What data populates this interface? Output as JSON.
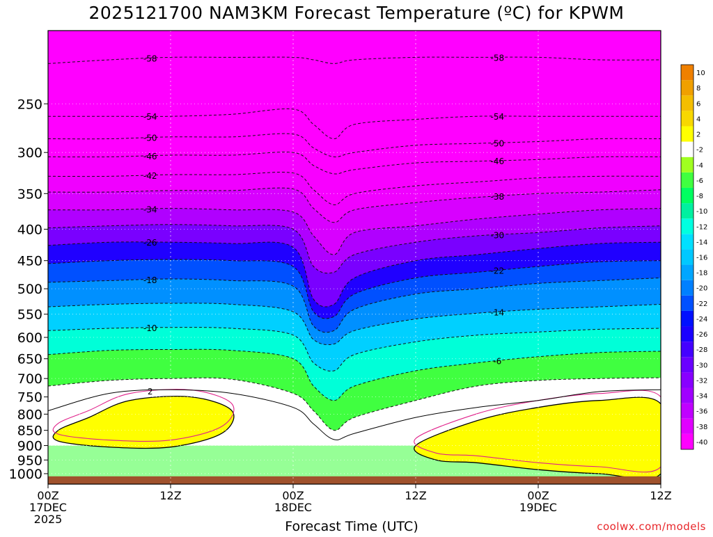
{
  "title": "2025121700 NAM3KM Forecast Temperature (ºC) for KPWM",
  "xlabel": "Forecast Time (UTC)",
  "credit": "coolwx.com/models",
  "chart_data": {
    "type": "heatmap",
    "title": "2025121700 NAM3KM Forecast Temperature (ºC) for KPWM",
    "xlabel": "Forecast Time (UTC)",
    "ylabel": "",
    "x_range_hours": [
      0,
      60
    ],
    "y_range_mb": [
      190,
      1040
    ],
    "y_scale": "log",
    "x_ticks": [
      {
        "hour": 0,
        "lines": [
          "00Z",
          "17DEC",
          "2025"
        ]
      },
      {
        "hour": 12,
        "lines": [
          "12Z"
        ]
      },
      {
        "hour": 24,
        "lines": [
          "00Z",
          "18DEC"
        ]
      },
      {
        "hour": 36,
        "lines": [
          "12Z"
        ]
      },
      {
        "hour": 48,
        "lines": [
          "00Z",
          "19DEC"
        ]
      },
      {
        "hour": 60,
        "lines": [
          "12Z"
        ]
      }
    ],
    "y_ticks": [
      250,
      300,
      350,
      400,
      450,
      500,
      550,
      600,
      650,
      700,
      750,
      800,
      850,
      900,
      950,
      1000
    ],
    "grid": true,
    "colorbar": {
      "position": "right",
      "colors": [
        "#ff00ff",
        "#e000ff",
        "#c000ff",
        "#a000ff",
        "#8800ff",
        "#6a00ff",
        "#4400ff",
        "#1a00ff",
        "#0010ff",
        "#0050ff",
        "#0080ff",
        "#00a6ff",
        "#00c8ff",
        "#00e0ff",
        "#00ffe0",
        "#00f0a0",
        "#00ff60",
        "#40ff40",
        "#a0ff20",
        "#ffffff",
        "#ffff00",
        "#f8d800",
        "#f4be00",
        "#f0a000",
        "#ef8000"
      ],
      "labels": [
        "-40",
        "-38",
        "-36",
        "-34",
        "-32",
        "-30",
        "-28",
        "-26",
        "-24",
        "-22",
        "-20",
        "-18",
        "-16",
        "-14",
        "-12",
        "-10",
        "-8",
        "-6",
        "-4",
        "-2",
        "2",
        "4",
        "6",
        "8",
        "10"
      ]
    },
    "forecast_hours": [
      0,
      6,
      12,
      18,
      24,
      26,
      28,
      30,
      36,
      42,
      48,
      54,
      60
    ],
    "isotherm_pressure_mb": {
      "-58": [
        215,
        212,
        210,
        210,
        210,
        212,
        215,
        212,
        210,
        210,
        210,
        212,
        212
      ],
      "-54": [
        262,
        262,
        262,
        260,
        255,
        270,
        285,
        270,
        265,
        262,
        262,
        262,
        262
      ],
      "-50": [
        285,
        285,
        283,
        283,
        280,
        295,
        305,
        300,
        292,
        290,
        288,
        285,
        285
      ],
      "-46": [
        305,
        305,
        303,
        303,
        300,
        315,
        325,
        320,
        312,
        310,
        308,
        305,
        305
      ],
      "-42": [
        328,
        328,
        326,
        326,
        324,
        345,
        365,
        350,
        340,
        335,
        330,
        328,
        328
      ],
      "-38": [
        348,
        348,
        346,
        346,
        344,
        370,
        390,
        372,
        362,
        355,
        350,
        348,
        345
      ],
      "-34": [
        372,
        372,
        370,
        372,
        375,
        410,
        440,
        405,
        395,
        385,
        378,
        372,
        370
      ],
      "-30": [
        398,
        395,
        393,
        395,
        400,
        460,
        470,
        440,
        420,
        410,
        405,
        398,
        395
      ],
      "-26": [
        425,
        420,
        420,
        422,
        428,
        520,
        530,
        480,
        450,
        440,
        430,
        422,
        420
      ],
      "-22": [
        455,
        450,
        448,
        450,
        460,
        545,
        555,
        510,
        480,
        470,
        460,
        452,
        450
      ],
      "-18": [
        488,
        485,
        482,
        485,
        495,
        575,
        585,
        540,
        510,
        500,
        490,
        485,
        480
      ],
      "-14": [
        535,
        530,
        528,
        530,
        545,
        605,
        615,
        585,
        560,
        548,
        540,
        535,
        530
      ],
      "-10": [
        585,
        580,
        578,
        580,
        595,
        660,
        680,
        640,
        610,
        595,
        588,
        582,
        580
      ],
      "-6": [
        640,
        630,
        628,
        630,
        650,
        720,
        760,
        720,
        680,
        660,
        645,
        635,
        632
      ],
      "-2": [
        720,
        705,
        700,
        702,
        740,
        790,
        850,
        810,
        760,
        720,
        705,
        700,
        698
      ],
      "2": [
        790,
        740,
        730,
        740,
        780,
        830,
        880,
        860,
        810,
        780,
        760,
        735,
        730
      ]
    },
    "warm_layers": [
      {
        "name": "lower-warm-layer",
        "hours": [
          1,
          4,
          8,
          14,
          18,
          17,
          12,
          6,
          1
        ],
        "top_mb": [
          850,
          810,
          760,
          750,
          790,
          860,
          905,
          905,
          885
        ]
      },
      {
        "name": "right-warm-layer",
        "hours": [
          36,
          42,
          48,
          54,
          60,
          60,
          54,
          48,
          42,
          38
        ],
        "top_mb": [
          900,
          820,
          780,
          760,
          770,
          1000,
          1000,
          985,
          960,
          950
        ]
      }
    ],
    "contour_labels": [
      "-58",
      "-54",
      "-50",
      "-46",
      "-42",
      "-38",
      "-34",
      "-30",
      "-26",
      "-22",
      "-18",
      "-14",
      "-10",
      "-6",
      "2"
    ]
  }
}
